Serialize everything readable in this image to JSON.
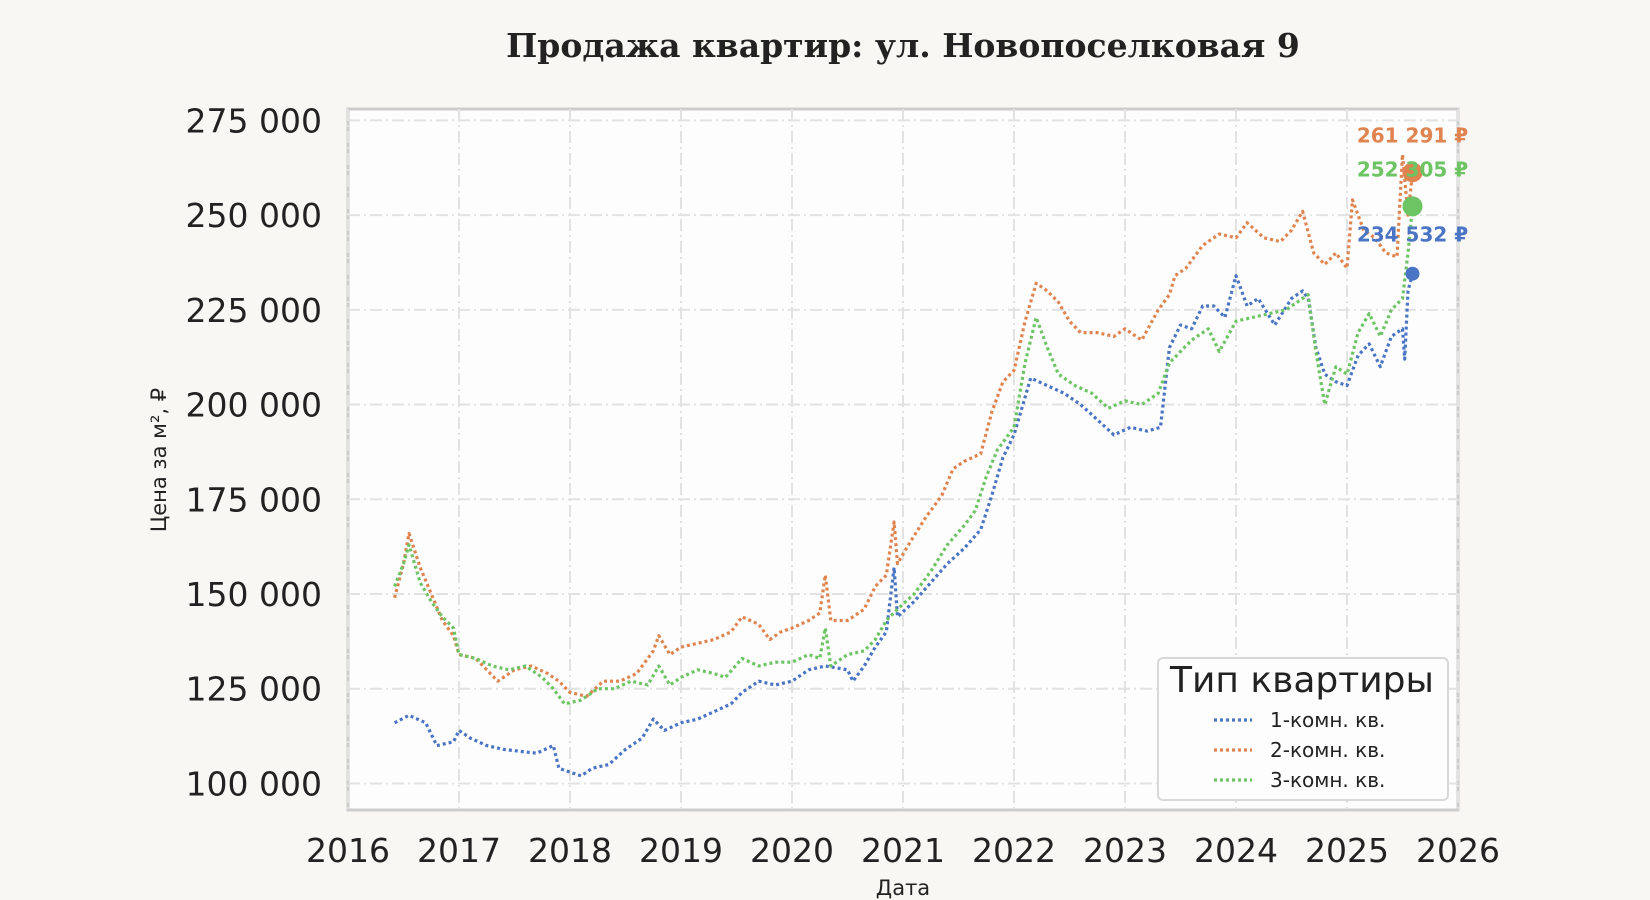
{
  "chart_data": {
    "type": "line",
    "title": "Продажа квартир: ул. Новопоселковая 9",
    "xlabel": "Дата",
    "ylabel": "Цена за м², ₽",
    "xlim": [
      2016,
      2026
    ],
    "ylim": [
      93000,
      278000
    ],
    "x_ticks": [
      2016,
      2017,
      2018,
      2019,
      2020,
      2021,
      2022,
      2023,
      2024,
      2025,
      2026
    ],
    "y_ticks": [
      100000,
      125000,
      150000,
      175000,
      200000,
      225000,
      250000,
      275000
    ],
    "y_tick_labels": [
      "100 000",
      "125 000",
      "150 000",
      "175 000",
      "200 000",
      "225 000",
      "250 000",
      "275 000"
    ],
    "grid": true,
    "legend": {
      "title": "Тип квартиры",
      "position": "bottom-right"
    },
    "series": [
      {
        "name": "1-комн. кв.",
        "color": "#4a74c4",
        "end_label": "234 532 ₽",
        "end_value": 234532,
        "points": [
          [
            2016.42,
            116000
          ],
          [
            2016.55,
            118000
          ],
          [
            2016.7,
            116000
          ],
          [
            2016.8,
            110000
          ],
          [
            2016.95,
            111000
          ],
          [
            2017.0,
            114000
          ],
          [
            2017.1,
            112000
          ],
          [
            2017.25,
            110000
          ],
          [
            2017.4,
            109000
          ],
          [
            2017.55,
            108500
          ],
          [
            2017.7,
            108000
          ],
          [
            2017.85,
            110000
          ],
          [
            2017.9,
            104000
          ],
          [
            2018.0,
            103000
          ],
          [
            2018.1,
            102000
          ],
          [
            2018.2,
            104000
          ],
          [
            2018.35,
            105000
          ],
          [
            2018.5,
            109000
          ],
          [
            2018.65,
            112000
          ],
          [
            2018.75,
            117000
          ],
          [
            2018.85,
            114000
          ],
          [
            2019.0,
            116000
          ],
          [
            2019.15,
            117000
          ],
          [
            2019.3,
            119000
          ],
          [
            2019.45,
            121000
          ],
          [
            2019.55,
            124000
          ],
          [
            2019.7,
            127000
          ],
          [
            2019.85,
            126000
          ],
          [
            2020.0,
            127000
          ],
          [
            2020.15,
            130000
          ],
          [
            2020.3,
            131000
          ],
          [
            2020.5,
            130000
          ],
          [
            2020.55,
            127000
          ],
          [
            2020.65,
            131000
          ],
          [
            2020.75,
            136000
          ],
          [
            2020.85,
            140000
          ],
          [
            2020.92,
            157000
          ],
          [
            2020.95,
            144000
          ],
          [
            2021.1,
            148000
          ],
          [
            2021.25,
            153000
          ],
          [
            2021.4,
            158000
          ],
          [
            2021.55,
            162000
          ],
          [
            2021.7,
            167000
          ],
          [
            2021.8,
            176000
          ],
          [
            2021.9,
            186000
          ],
          [
            2022.0,
            192000
          ],
          [
            2022.15,
            207000
          ],
          [
            2022.3,
            205000
          ],
          [
            2022.45,
            203000
          ],
          [
            2022.6,
            200000
          ],
          [
            2022.75,
            196000
          ],
          [
            2022.9,
            192000
          ],
          [
            2023.05,
            194000
          ],
          [
            2023.2,
            193000
          ],
          [
            2023.32,
            194000
          ],
          [
            2023.4,
            215000
          ],
          [
            2023.5,
            221000
          ],
          [
            2023.6,
            220000
          ],
          [
            2023.7,
            226000
          ],
          [
            2023.8,
            226000
          ],
          [
            2023.9,
            223000
          ],
          [
            2024.0,
            234000
          ],
          [
            2024.1,
            226000
          ],
          [
            2024.2,
            228000
          ],
          [
            2024.35,
            221000
          ],
          [
            2024.5,
            228000
          ],
          [
            2024.6,
            230000
          ],
          [
            2024.65,
            228000
          ],
          [
            2024.72,
            215000
          ],
          [
            2024.8,
            208000
          ],
          [
            2024.9,
            206000
          ],
          [
            2025.0,
            205000
          ],
          [
            2025.1,
            213000
          ],
          [
            2025.2,
            216000
          ],
          [
            2025.3,
            210000
          ],
          [
            2025.4,
            218000
          ],
          [
            2025.5,
            220000
          ],
          [
            2025.52,
            212000
          ],
          [
            2025.55,
            230000
          ],
          [
            2025.59,
            234532
          ]
        ]
      },
      {
        "name": "2-комн. кв.",
        "color": "#e0844f",
        "end_label": "261 291 ₽",
        "end_value": 261291,
        "points": [
          [
            2016.42,
            149000
          ],
          [
            2016.5,
            158000
          ],
          [
            2016.55,
            166000
          ],
          [
            2016.65,
            157000
          ],
          [
            2016.75,
            150000
          ],
          [
            2016.85,
            143000
          ],
          [
            2016.95,
            139000
          ],
          [
            2017.0,
            134000
          ],
          [
            2017.15,
            133000
          ],
          [
            2017.25,
            130000
          ],
          [
            2017.35,
            127000
          ],
          [
            2017.5,
            130000
          ],
          [
            2017.65,
            131000
          ],
          [
            2017.8,
            129000
          ],
          [
            2017.9,
            127000
          ],
          [
            2018.0,
            124000
          ],
          [
            2018.15,
            123000
          ],
          [
            2018.3,
            127000
          ],
          [
            2018.45,
            127000
          ],
          [
            2018.6,
            129000
          ],
          [
            2018.75,
            135000
          ],
          [
            2018.8,
            139000
          ],
          [
            2018.9,
            134000
          ],
          [
            2019.0,
            136000
          ],
          [
            2019.15,
            137000
          ],
          [
            2019.3,
            138000
          ],
          [
            2019.45,
            140000
          ],
          [
            2019.55,
            144000
          ],
          [
            2019.7,
            142000
          ],
          [
            2019.8,
            138000
          ],
          [
            2019.9,
            140000
          ],
          [
            2020.0,
            141000
          ],
          [
            2020.15,
            143000
          ],
          [
            2020.25,
            145000
          ],
          [
            2020.3,
            155000
          ],
          [
            2020.35,
            143000
          ],
          [
            2020.5,
            143000
          ],
          [
            2020.65,
            146000
          ],
          [
            2020.75,
            152000
          ],
          [
            2020.85,
            155000
          ],
          [
            2020.92,
            169000
          ],
          [
            2020.95,
            158000
          ],
          [
            2021.05,
            163000
          ],
          [
            2021.2,
            170000
          ],
          [
            2021.35,
            176000
          ],
          [
            2021.45,
            183000
          ],
          [
            2021.55,
            185000
          ],
          [
            2021.7,
            187000
          ],
          [
            2021.8,
            198000
          ],
          [
            2021.9,
            206000
          ],
          [
            2022.0,
            209000
          ],
          [
            2022.1,
            222000
          ],
          [
            2022.2,
            232000
          ],
          [
            2022.3,
            230000
          ],
          [
            2022.4,
            227000
          ],
          [
            2022.5,
            222000
          ],
          [
            2022.6,
            219000
          ],
          [
            2022.75,
            219000
          ],
          [
            2022.9,
            218000
          ],
          [
            2023.0,
            220000
          ],
          [
            2023.15,
            217000
          ],
          [
            2023.3,
            225000
          ],
          [
            2023.4,
            229000
          ],
          [
            2023.45,
            234000
          ],
          [
            2023.55,
            236000
          ],
          [
            2023.7,
            242000
          ],
          [
            2023.85,
            245000
          ],
          [
            2024.0,
            244000
          ],
          [
            2024.1,
            248000
          ],
          [
            2024.25,
            244000
          ],
          [
            2024.4,
            243000
          ],
          [
            2024.5,
            246000
          ],
          [
            2024.6,
            251000
          ],
          [
            2024.7,
            240000
          ],
          [
            2024.8,
            237000
          ],
          [
            2024.9,
            240000
          ],
          [
            2025.0,
            236000
          ],
          [
            2025.05,
            254000
          ],
          [
            2025.15,
            246000
          ],
          [
            2025.25,
            244000
          ],
          [
            2025.35,
            240000
          ],
          [
            2025.45,
            239000
          ],
          [
            2025.5,
            266000
          ],
          [
            2025.55,
            250000
          ],
          [
            2025.59,
            261291
          ]
        ]
      },
      {
        "name": "3-комн. кв.",
        "color": "#6cc463",
        "end_label": "252 305 ₽",
        "end_value": 252305,
        "points": [
          [
            2016.42,
            152000
          ],
          [
            2016.5,
            158000
          ],
          [
            2016.55,
            163000
          ],
          [
            2016.65,
            153000
          ],
          [
            2016.75,
            148000
          ],
          [
            2016.85,
            144000
          ],
          [
            2016.95,
            141000
          ],
          [
            2017.0,
            134000
          ],
          [
            2017.15,
            133000
          ],
          [
            2017.3,
            131000
          ],
          [
            2017.45,
            130000
          ],
          [
            2017.6,
            131000
          ],
          [
            2017.75,
            128000
          ],
          [
            2017.85,
            125000
          ],
          [
            2017.95,
            121000
          ],
          [
            2018.1,
            122000
          ],
          [
            2018.25,
            125000
          ],
          [
            2018.4,
            125000
          ],
          [
            2018.55,
            127000
          ],
          [
            2018.7,
            126000
          ],
          [
            2018.8,
            131000
          ],
          [
            2018.9,
            126000
          ],
          [
            2019.0,
            128000
          ],
          [
            2019.15,
            130000
          ],
          [
            2019.3,
            129000
          ],
          [
            2019.4,
            128000
          ],
          [
            2019.55,
            133000
          ],
          [
            2019.7,
            131000
          ],
          [
            2019.85,
            132000
          ],
          [
            2020.0,
            132000
          ],
          [
            2020.15,
            134000
          ],
          [
            2020.25,
            133000
          ],
          [
            2020.3,
            141000
          ],
          [
            2020.35,
            131000
          ],
          [
            2020.5,
            134000
          ],
          [
            2020.65,
            135000
          ],
          [
            2020.75,
            138000
          ],
          [
            2020.85,
            143000
          ],
          [
            2020.95,
            146000
          ],
          [
            2021.1,
            150000
          ],
          [
            2021.25,
            156000
          ],
          [
            2021.4,
            163000
          ],
          [
            2021.55,
            168000
          ],
          [
            2021.65,
            172000
          ],
          [
            2021.75,
            181000
          ],
          [
            2021.85,
            188000
          ],
          [
            2022.0,
            194000
          ],
          [
            2022.1,
            211000
          ],
          [
            2022.2,
            223000
          ],
          [
            2022.3,
            215000
          ],
          [
            2022.4,
            208000
          ],
          [
            2022.55,
            205000
          ],
          [
            2022.7,
            203000
          ],
          [
            2022.85,
            199000
          ],
          [
            2023.0,
            201000
          ],
          [
            2023.15,
            200000
          ],
          [
            2023.3,
            203000
          ],
          [
            2023.4,
            211000
          ],
          [
            2023.5,
            214000
          ],
          [
            2023.6,
            217000
          ],
          [
            2023.75,
            220000
          ],
          [
            2023.85,
            214000
          ],
          [
            2024.0,
            222000
          ],
          [
            2024.15,
            223000
          ],
          [
            2024.3,
            224000
          ],
          [
            2024.45,
            225000
          ],
          [
            2024.6,
            228000
          ],
          [
            2024.65,
            229000
          ],
          [
            2024.72,
            214000
          ],
          [
            2024.8,
            200000
          ],
          [
            2024.9,
            210000
          ],
          [
            2025.0,
            208000
          ],
          [
            2025.1,
            219000
          ],
          [
            2025.2,
            224000
          ],
          [
            2025.3,
            218000
          ],
          [
            2025.4,
            225000
          ],
          [
            2025.5,
            228000
          ],
          [
            2025.55,
            240000
          ],
          [
            2025.59,
            252305
          ]
        ]
      }
    ]
  }
}
